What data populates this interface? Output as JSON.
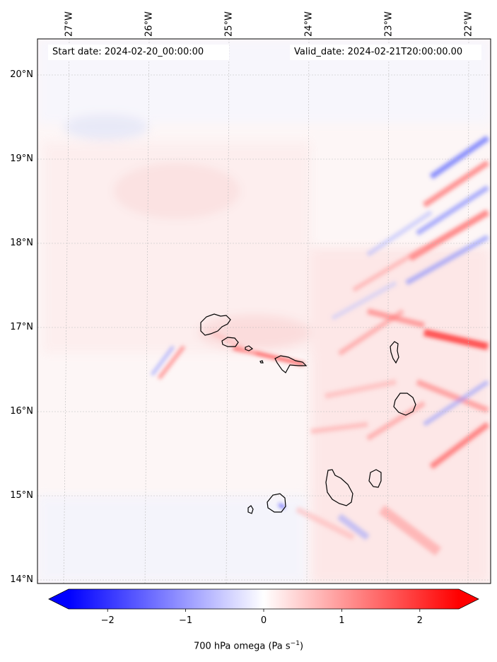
{
  "map": {
    "start_label": "Start date: 2024-02-20_00:00:00",
    "valid_label": "Valid_date: 2024-02-21T20:00:00.00",
    "lon_ticks": [
      "27°W",
      "26°W",
      "25°W",
      "24°W",
      "23°W",
      "22°W"
    ],
    "lat_ticks": [
      "20°N",
      "19°N",
      "18°N",
      "17°N",
      "16°N",
      "15°N",
      "14°N"
    ],
    "lon_range": [
      -27.6,
      -21.95
    ],
    "lat_range": [
      13.95,
      20.45
    ],
    "field_colormap": "bwr",
    "colors": {
      "negative": "#0000ff",
      "neutral": "#ffffff",
      "positive": "#ff0000"
    },
    "islands": [
      "Santo Antão",
      "São Vicente",
      "Santa Luzia",
      "São Nicolau",
      "Sal",
      "Boa Vista",
      "Maio",
      "Santiago",
      "Fogo",
      "Brava"
    ]
  },
  "colorbar": {
    "title_prefix": "700 hPa omega (Pa s",
    "title_sup": "−1",
    "title_suffix": ")",
    "ticks": [
      "−2",
      "−1",
      "0",
      "1",
      "2"
    ],
    "tick_values": [
      -2,
      -1,
      0,
      1,
      2
    ],
    "range": [
      -2.5,
      2.5
    ],
    "extend": "both"
  }
}
